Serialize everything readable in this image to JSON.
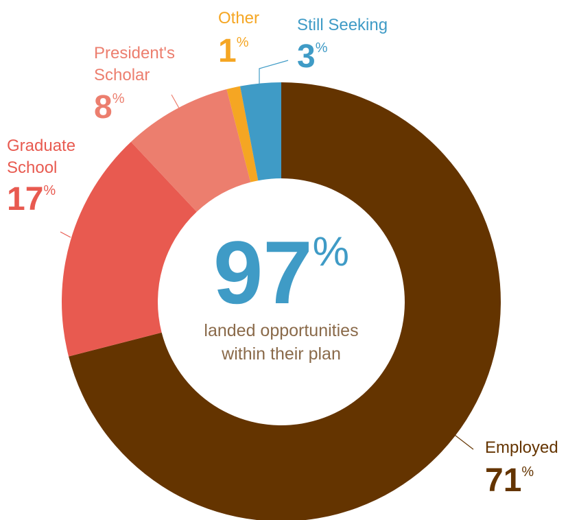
{
  "chart_data": {
    "type": "donut",
    "categories": [
      "Employed",
      "Graduate School",
      "President's Scholar",
      "Other",
      "Still Seeking"
    ],
    "values": [
      71,
      17,
      8,
      1,
      3
    ],
    "value_labels": [
      "71%",
      "17%",
      "8%",
      "1%",
      "3%"
    ],
    "colors": [
      "#643400",
      "#e85a50",
      "#ec7e6e",
      "#f5a623",
      "#3f9bc6"
    ],
    "center_value": "97%",
    "center_text": [
      "landed opportunities",
      "within their plan"
    ]
  }
}
